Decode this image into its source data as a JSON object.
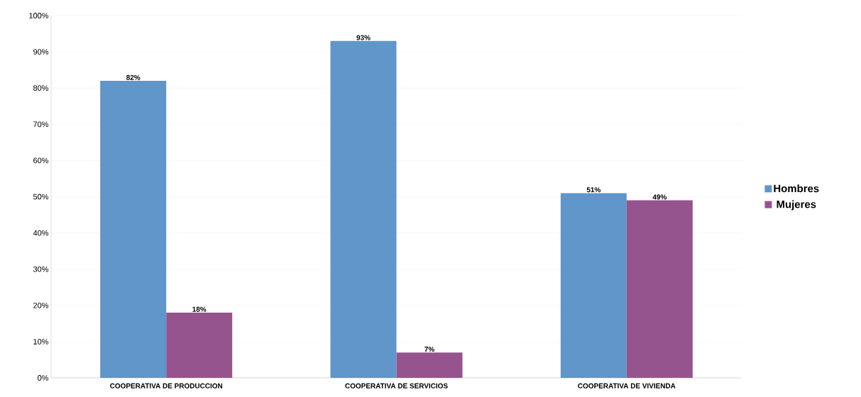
{
  "chart_data": {
    "type": "bar",
    "categories": [
      "COOPERATIVA DE PRODUCCION",
      "COOPERATIVA DE SERVICIOS",
      "COOPERATIVA DE VIVIENDA"
    ],
    "series": [
      {
        "name": "Hombres",
        "color": "#6096c9",
        "values": [
          82,
          93,
          51
        ],
        "value_labels": [
          "82%",
          "93%",
          "51%"
        ]
      },
      {
        "name": "Mujeres",
        "color": "#96548e",
        "values": [
          18,
          7,
          49
        ],
        "value_labels": [
          "18%",
          "7%",
          "49%"
        ]
      }
    ],
    "ylim": [
      0,
      100
    ],
    "yticks": [
      {
        "value": 0,
        "label": "0%"
      },
      {
        "value": 10,
        "label": "10%"
      },
      {
        "value": 20,
        "label": "20%"
      },
      {
        "value": 30,
        "label": "30%"
      },
      {
        "value": 40,
        "label": "40%"
      },
      {
        "value": 50,
        "label": "50%"
      },
      {
        "value": 60,
        "label": "60%"
      },
      {
        "value": 70,
        "label": "70%"
      },
      {
        "value": 80,
        "label": "80%"
      },
      {
        "value": 90,
        "label": "90%"
      },
      {
        "value": 100,
        "label": "100%"
      }
    ],
    "grid": "y",
    "legend": "right"
  }
}
